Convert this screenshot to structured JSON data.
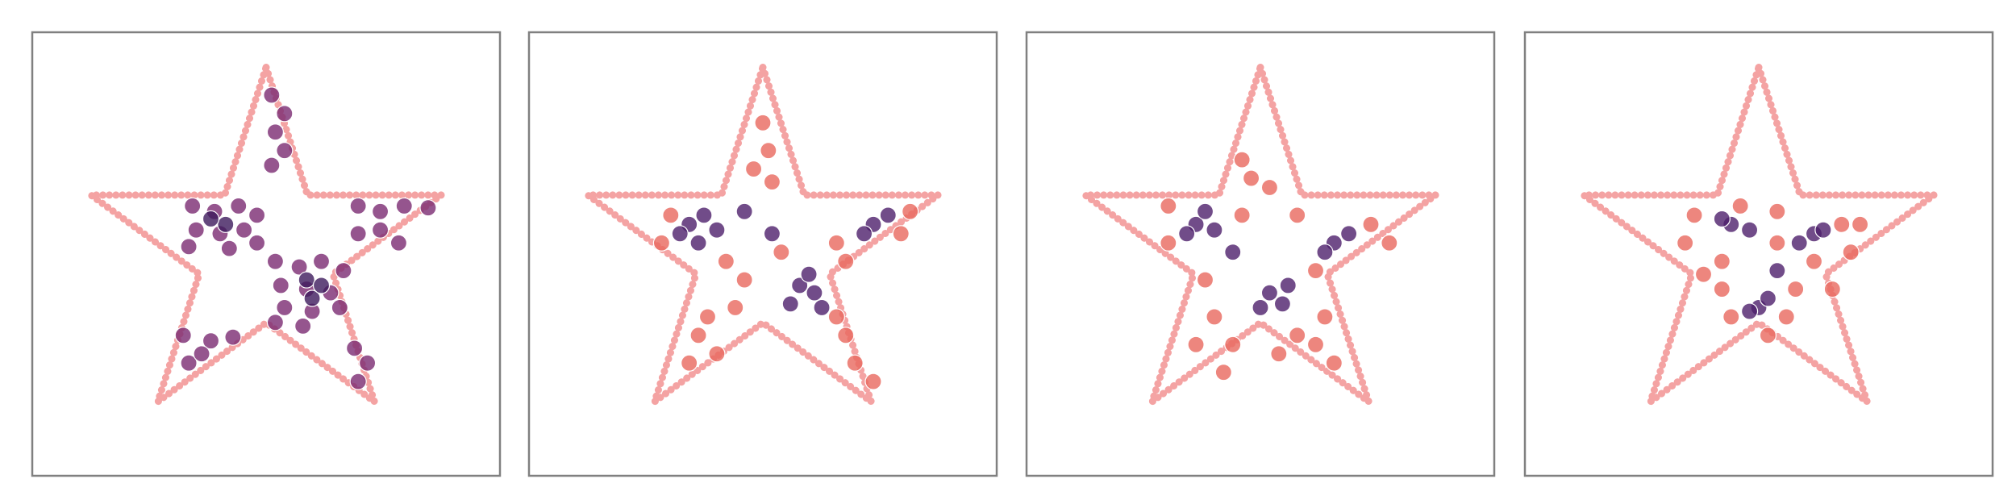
{
  "chart_data": [
    {
      "type": "scatter",
      "xlim": [
        -1.27,
        1.27
      ],
      "ylim": [
        -1.21,
        1.19
      ],
      "outline": {
        "color": "#f4a3a3",
        "x": [
          0,
          0.225,
          0.951,
          0.363,
          0.588,
          0,
          -0.588,
          -0.363,
          -0.951,
          -0.225,
          0
        ],
        "values": [
          1,
          0.309,
          0.309,
          -0.118,
          -0.809,
          -0.382,
          -0.809,
          -0.118,
          0.309,
          0.309,
          1
        ]
      },
      "series": [
        {
          "color": "#7a2a72",
          "x": [
            -0.4,
            -0.28,
            -0.15,
            -0.05,
            -0.38,
            -0.25,
            -0.12,
            -0.05,
            -0.42,
            -0.2,
            0.5,
            0.62,
            0.75,
            0.88,
            0.5,
            0.62,
            0.72,
            0.05,
            0.18,
            0.3,
            0.42,
            0.08,
            0.22,
            0.35,
            0.1,
            0.25,
            0.4,
            0.05,
            0.2,
            0.03,
            0.1,
            0.05,
            0.1,
            0.03,
            -0.45,
            -0.3,
            -0.18,
            -0.42,
            -0.35,
            0.48,
            0.55,
            0.5
          ],
          "values": [
            0.25,
            0.22,
            0.25,
            0.2,
            0.12,
            0.1,
            0.12,
            0.05,
            0.03,
            0.02,
            0.25,
            0.22,
            0.25,
            0.24,
            0.1,
            0.12,
            0.05,
            -0.05,
            -0.08,
            -0.05,
            -0.1,
            -0.18,
            -0.2,
            -0.22,
            -0.3,
            -0.32,
            -0.3,
            -0.38,
            -0.4,
            0.85,
            0.75,
            0.65,
            0.55,
            0.47,
            -0.45,
            -0.48,
            -0.46,
            -0.6,
            -0.55,
            -0.52,
            -0.6,
            -0.7
          ]
        },
        {
          "color": "#3d1a5c",
          "x": [
            -0.22,
            0.22,
            0.25,
            -0.3,
            0.3
          ],
          "values": [
            0.15,
            -0.15,
            -0.25,
            0.18,
            -0.18
          ]
        }
      ]
    },
    {
      "type": "scatter",
      "xlim": [
        -1.27,
        1.27
      ],
      "ylim": [
        -1.21,
        1.19
      ],
      "outline": {
        "color": "#f4a3a3",
        "x": [
          0,
          0.225,
          0.951,
          0.363,
          0.588,
          0,
          -0.588,
          -0.363,
          -0.951,
          -0.225,
          0
        ],
        "values": [
          1,
          0.309,
          0.309,
          -0.118,
          -0.809,
          -0.382,
          -0.809,
          -0.118,
          0.309,
          0.309,
          1
        ]
      },
      "series": [
        {
          "color": "#e8685e",
          "x": [
            0.0,
            0.03,
            -0.05,
            0.05,
            -0.55,
            -0.5,
            -0.2,
            -0.1,
            0.1,
            0.4,
            0.45,
            0.8,
            0.75,
            -0.35,
            -0.25,
            -0.4,
            -0.3,
            0.45,
            0.5,
            0.4,
            0.6,
            -0.15
          ],
          "values": [
            0.7,
            0.55,
            0.45,
            0.38,
            0.05,
            0.2,
            -0.05,
            -0.15,
            0.0,
            0.05,
            -0.05,
            0.22,
            0.1,
            -0.45,
            -0.55,
            -0.6,
            -0.35,
            -0.45,
            -0.6,
            -0.35,
            -0.7,
            -0.3
          ]
        },
        {
          "color": "#4d1f6b",
          "x": [
            -0.4,
            -0.32,
            -0.25,
            -0.35,
            -0.45,
            0.2,
            0.28,
            0.15,
            0.25,
            0.32,
            0.6,
            0.68,
            0.55,
            0.05,
            -0.1
          ],
          "values": [
            0.15,
            0.2,
            0.12,
            0.05,
            0.1,
            -0.18,
            -0.22,
            -0.28,
            -0.12,
            -0.3,
            0.15,
            0.2,
            0.1,
            0.1,
            0.22
          ]
        }
      ]
    },
    {
      "type": "scatter",
      "xlim": [
        -1.27,
        1.27
      ],
      "ylim": [
        -1.21,
        1.19
      ],
      "outline": {
        "color": "#f4a3a3",
        "x": [
          0,
          0.225,
          0.951,
          0.363,
          0.588,
          0,
          -0.588,
          -0.363,
          -0.951,
          -0.225,
          0
        ],
        "values": [
          1,
          0.309,
          0.309,
          -0.118,
          -0.809,
          -0.382,
          -0.809,
          -0.118,
          0.309,
          0.309,
          1
        ]
      },
      "series": [
        {
          "color": "#e8685e",
          "x": [
            -0.1,
            -0.05,
            0.05,
            -0.5,
            -0.5,
            0.2,
            0.6,
            0.7,
            0.3,
            -0.3,
            -0.25,
            -0.15,
            -0.35,
            0.2,
            0.3,
            0.35,
            0.4,
            -0.2,
            0.1,
            -0.1
          ],
          "values": [
            0.5,
            0.4,
            0.35,
            0.05,
            0.25,
            0.2,
            0.15,
            0.05,
            -0.1,
            -0.15,
            -0.35,
            -0.5,
            -0.5,
            -0.45,
            -0.5,
            -0.35,
            -0.6,
            -0.65,
            -0.55,
            0.2
          ]
        },
        {
          "color": "#4d1f6b",
          "x": [
            -0.35,
            -0.25,
            -0.3,
            -0.4,
            0.05,
            0.12,
            0.0,
            0.15,
            0.4,
            0.48,
            0.35,
            -0.15
          ],
          "values": [
            0.15,
            0.12,
            0.22,
            0.1,
            -0.22,
            -0.28,
            -0.3,
            -0.18,
            0.05,
            0.1,
            0.0,
            0.0
          ]
        }
      ]
    },
    {
      "type": "scatter",
      "xlim": [
        -1.27,
        1.27
      ],
      "ylim": [
        -1.21,
        1.19
      ],
      "outline": {
        "color": "#f4a3a3",
        "x": [
          0,
          0.225,
          0.951,
          0.363,
          0.588,
          0,
          -0.588,
          -0.363,
          -0.951,
          -0.225,
          0
        ],
        "values": [
          1,
          0.309,
          0.309,
          -0.118,
          -0.809,
          -0.382,
          -0.809,
          -0.118,
          0.309,
          0.309,
          1
        ]
      },
      "series": [
        {
          "color": "#e8685e",
          "x": [
            -0.4,
            -0.35,
            -0.1,
            0.1,
            0.45,
            0.5,
            0.3,
            -0.2,
            -0.2,
            -0.15,
            0.15,
            0.2,
            -0.3,
            0.4,
            0.05,
            0.55,
            0.1
          ],
          "values": [
            0.05,
            0.2,
            0.25,
            0.22,
            0.15,
            0.0,
            -0.05,
            -0.05,
            -0.2,
            -0.35,
            -0.35,
            -0.2,
            -0.12,
            -0.2,
            -0.45,
            0.15,
            0.05
          ]
        },
        {
          "color": "#4d1f6b",
          "x": [
            -0.15,
            -0.05,
            -0.2,
            0.3,
            0.35,
            0.22,
            0.0,
            0.05,
            -0.05,
            0.1
          ],
          "values": [
            0.15,
            0.12,
            0.18,
            0.1,
            0.12,
            0.05,
            -0.3,
            -0.25,
            -0.32,
            -0.1
          ]
        }
      ]
    }
  ]
}
